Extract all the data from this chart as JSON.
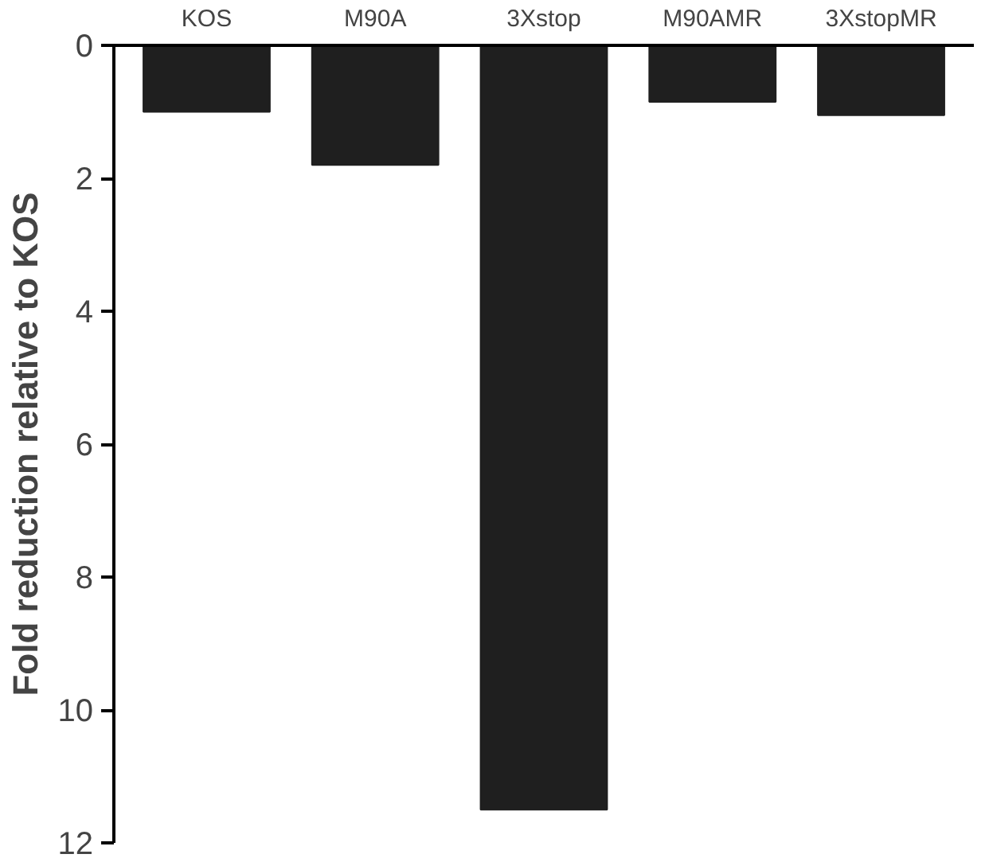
{
  "chart_data": {
    "type": "bar",
    "ylabel": "Fold reduction relative to KOS",
    "categories": [
      "KOS",
      "M90A",
      "3Xstop",
      "M90AMR",
      "3XstopMR"
    ],
    "values": [
      1.0,
      1.8,
      11.5,
      0.85,
      1.05
    ],
    "color": "#1f1f1f",
    "ylim": [
      12,
      0
    ],
    "yticks": [
      0,
      2,
      4,
      6,
      8,
      10,
      12
    ],
    "grid": false
  }
}
